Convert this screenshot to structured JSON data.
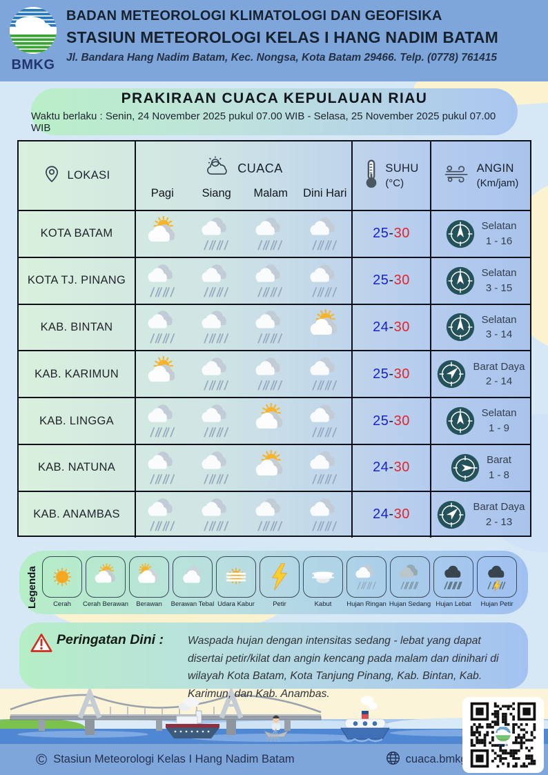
{
  "colors": {
    "header_bg": "#7ea6da",
    "page_bg": "#d6e8f6",
    "card_gradient_left": "#b9efc8",
    "card_gradient_right": "#a9c6f0",
    "table_border": "#0e0e18",
    "temp_min_color": "#1d1dd0",
    "temp_max_color": "#e3242b",
    "compass_bg": "#24525a",
    "sun": "#f7a821",
    "lightning": "#ffce2e"
  },
  "header": {
    "logo_label": "BMKG",
    "line1": "BADAN METEOROLOGI KLIMATOLOGI DAN GEOFISIKA",
    "line2": "STASIUN METEOROLOGI KELAS I HANG NADIM BATAM",
    "line3": "Jl. Bandara Hang Nadim Batam, Kec. Nongsa, Kota Batam 29466.  Telp. (0778) 761415"
  },
  "title": {
    "heading": "PRAKIRAAN CUACA KEPULAUAN RIAU",
    "validity": "Waktu berlaku : Senin, 24 November 2025 pukul 07.00 WIB - Selasa, 25 November 2025 pukul 07.00 WIB"
  },
  "table": {
    "headers": {
      "lokasi": "LOKASI",
      "cuaca": "CUACA",
      "suhu": "SUHU",
      "suhu_unit": "(°C)",
      "angin": "ANGIN",
      "angin_unit": "(Km/jam)"
    },
    "times": [
      "Pagi",
      "Siang",
      "Malam",
      "Dini Hari"
    ],
    "temp_separator": "-",
    "rows": [
      {
        "lokasi": "KOTA BATAM",
        "icons": [
          "cerah-berawan",
          "hujan-ringan",
          "hujan-ringan",
          "hujan-ringan"
        ],
        "t_min": "25",
        "t_max": "30",
        "wind_dir": "Selatan",
        "wind_speed": "1 - 16",
        "arrow_deg": 0
      },
      {
        "lokasi": "KOTA TJ. PINANG",
        "icons": [
          "hujan-ringan",
          "hujan-ringan",
          "hujan-ringan",
          "hujan-ringan"
        ],
        "t_min": "25",
        "t_max": "30",
        "wind_dir": "Selatan",
        "wind_speed": "3 - 15",
        "arrow_deg": 0
      },
      {
        "lokasi": "KAB. BINTAN",
        "icons": [
          "hujan-ringan",
          "hujan-ringan",
          "hujan-ringan",
          "cerah-berawan"
        ],
        "t_min": "24",
        "t_max": "30",
        "wind_dir": "Selatan",
        "wind_speed": "3 - 14",
        "arrow_deg": 0
      },
      {
        "lokasi": "KAB. KARIMUN",
        "icons": [
          "cerah-berawan",
          "hujan-ringan",
          "hujan-ringan",
          "hujan-ringan"
        ],
        "t_min": "25",
        "t_max": "30",
        "wind_dir": "Barat Daya",
        "wind_speed": "2 - 14",
        "arrow_deg": 45
      },
      {
        "lokasi": "KAB. LINGGA",
        "icons": [
          "hujan-ringan",
          "hujan-ringan",
          "cerah-berawan",
          "hujan-ringan"
        ],
        "t_min": "25",
        "t_max": "30",
        "wind_dir": "Selatan",
        "wind_speed": "1 - 9",
        "arrow_deg": 0
      },
      {
        "lokasi": "KAB. NATUNA",
        "icons": [
          "hujan-ringan",
          "hujan-ringan",
          "cerah-berawan",
          "hujan-ringan"
        ],
        "t_min": "24",
        "t_max": "30",
        "wind_dir": "Barat",
        "wind_speed": "1 - 8",
        "arrow_deg": 90
      },
      {
        "lokasi": "KAB. ANAMBAS",
        "icons": [
          "hujan-ringan",
          "hujan-ringan",
          "hujan-ringan",
          "hujan-ringan"
        ],
        "t_min": "24",
        "t_max": "30",
        "wind_dir": "Barat Daya",
        "wind_speed": "2 - 13",
        "arrow_deg": 45
      }
    ]
  },
  "legend": {
    "label": "Legenda",
    "items": [
      {
        "name": "Cerah",
        "icon": "cerah"
      },
      {
        "name": "Cerah Berawan",
        "icon": "cerah-berawan"
      },
      {
        "name": "Berawan",
        "icon": "berawan"
      },
      {
        "name": "Berawan Tebal",
        "icon": "berawan-tebal"
      },
      {
        "name": "Udara Kabur",
        "icon": "udara-kabur"
      },
      {
        "name": "Petir",
        "icon": "petir"
      },
      {
        "name": "Kabut",
        "icon": "kabut"
      },
      {
        "name": "Hujan Ringan",
        "icon": "hujan-ringan"
      },
      {
        "name": "Hujan Sedang",
        "icon": "hujan-sedang"
      },
      {
        "name": "Hujan Lebat",
        "icon": "hujan-lebat"
      },
      {
        "name": "Hujan Petir",
        "icon": "hujan-petir"
      }
    ]
  },
  "warning": {
    "label": "Peringatan Dini :",
    "text": "Waspada hujan dengan intensitas sedang - lebat yang dapat disertai petir/kilat dan angin kencang pada malam dan dinihari di wilayah Kota Batam, Kota Tanjung Pinang, Kab. Bintan, Kab. Karimun, dan Kab. Anambas."
  },
  "footer": {
    "copyright_symbol": "©",
    "copyright": "Stasiun Meteorologi Kelas I Hang Nadim Batam",
    "website": "cuaca.bmkg.go.id"
  }
}
